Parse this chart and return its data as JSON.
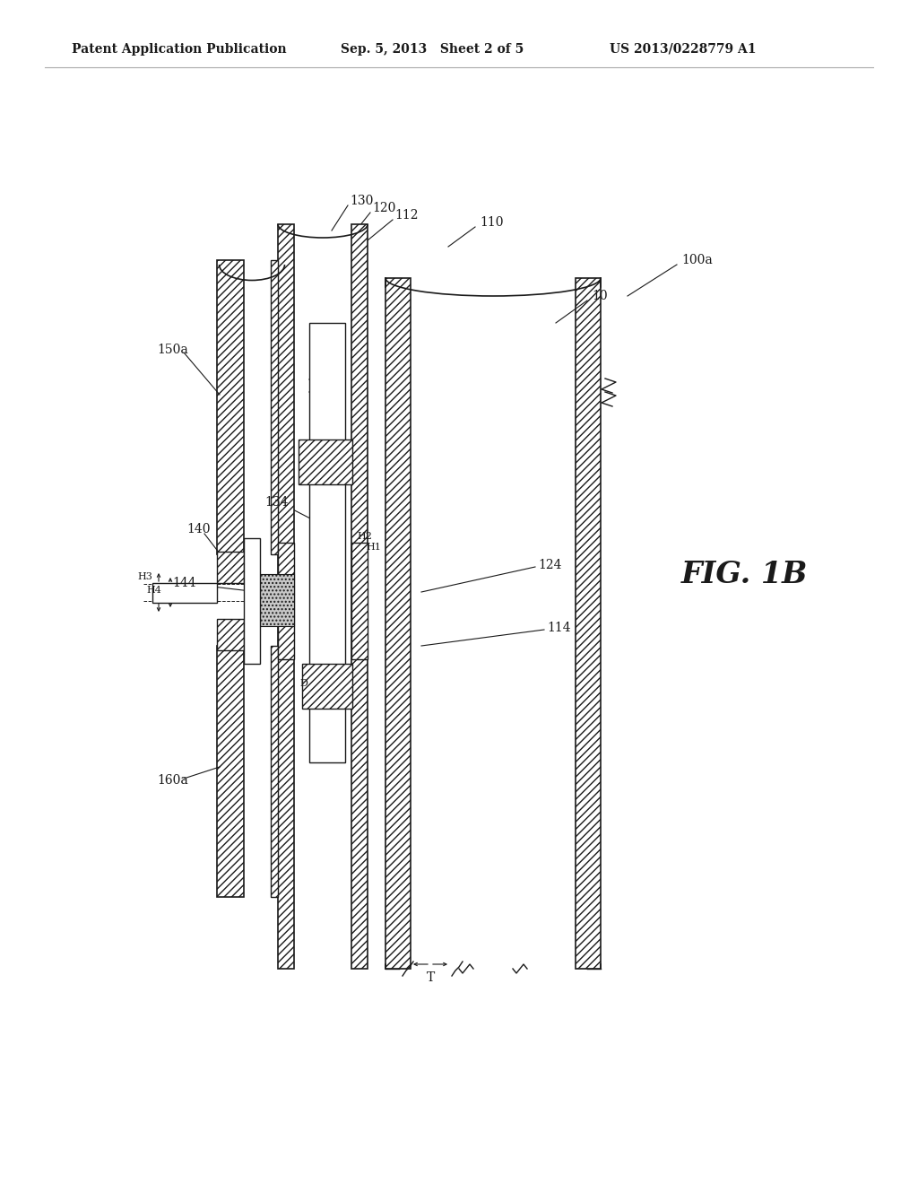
{
  "bg_color": "#ffffff",
  "line_color": "#1a1a1a",
  "header_left": "Patent Application Publication",
  "header_mid": "Sep. 5, 2013   Sheet 2 of 5",
  "header_right": "US 2013/0228779 A1",
  "fig_label": "FIG. 1B"
}
